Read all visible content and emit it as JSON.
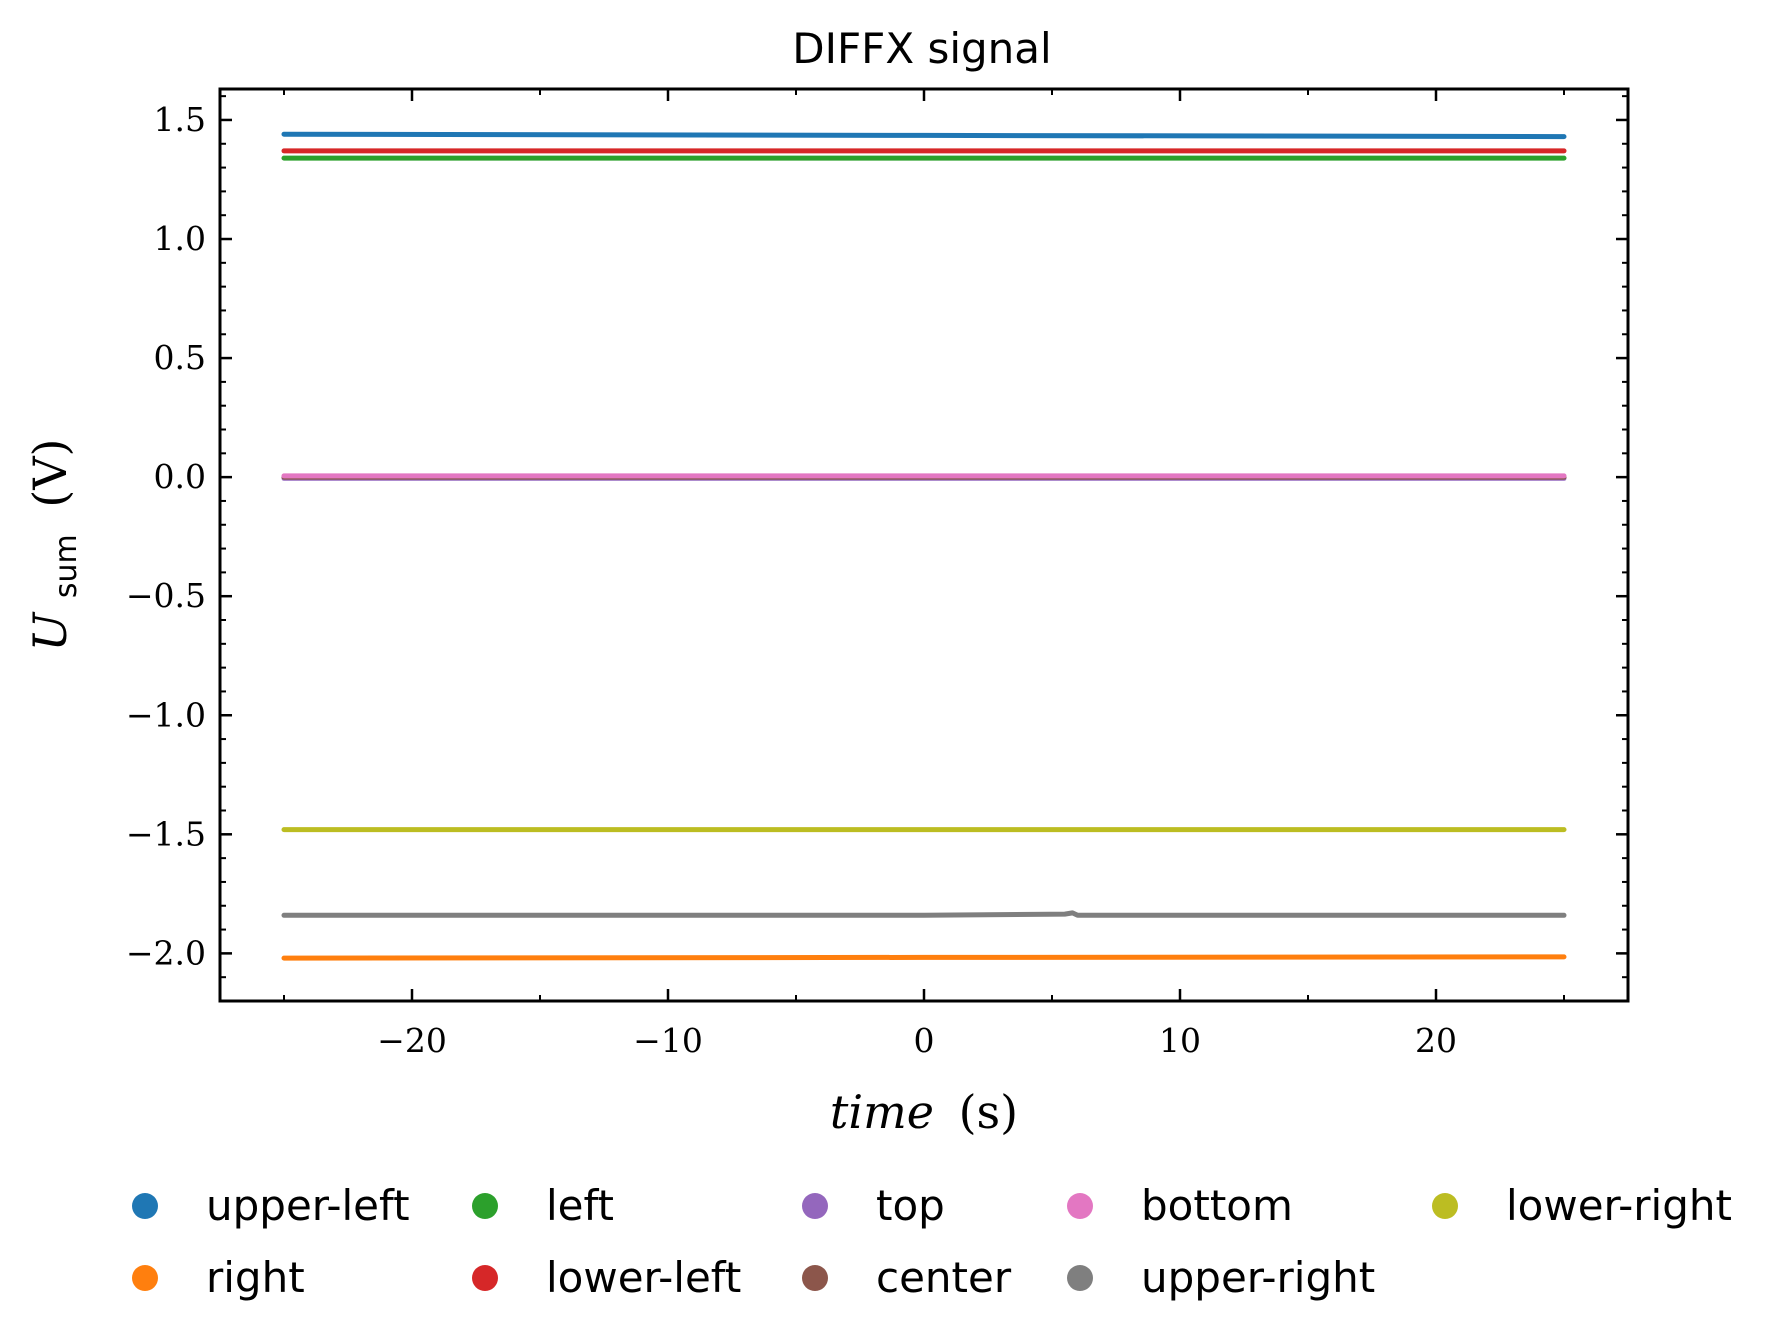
{
  "chart_data": {
    "type": "line",
    "title": "DIFFX signal",
    "xlabel": {
      "var": "time",
      "unit": "(s)"
    },
    "ylabel": {
      "var": "U",
      "sub": "sum",
      "unit": "(V)"
    },
    "xlim": [
      -27.5,
      27.5
    ],
    "ylim": [
      -2.2,
      1.63
    ],
    "x_ticks": [
      {
        "value": -20,
        "label": "−20"
      },
      {
        "value": -10,
        "label": "−10"
      },
      {
        "value": 0,
        "label": "0"
      },
      {
        "value": 10,
        "label": "10"
      },
      {
        "value": 20,
        "label": "20"
      }
    ],
    "y_ticks": [
      {
        "value": 1.5,
        "label": "1.5"
      },
      {
        "value": 1.0,
        "label": "1.0"
      },
      {
        "value": 0.5,
        "label": "0.5"
      },
      {
        "value": 0.0,
        "label": "0.0"
      },
      {
        "value": -0.5,
        "label": "−0.5"
      },
      {
        "value": -1.0,
        "label": "−1.0"
      },
      {
        "value": -1.5,
        "label": "−1.5"
      },
      {
        "value": -2.0,
        "label": "−2.0"
      }
    ],
    "grid": false,
    "legend_position": "bottom",
    "series": [
      {
        "name": "upper-left",
        "color": "#1f77b4",
        "x": [
          -25,
          0,
          25
        ],
        "y": [
          1.44,
          1.435,
          1.43
        ]
      },
      {
        "name": "right",
        "color": "#ff7f0e",
        "x": [
          -25,
          0,
          25
        ],
        "y": [
          -2.02,
          -2.017,
          -2.015
        ]
      },
      {
        "name": "left",
        "color": "#2ca02c",
        "x": [
          -25,
          0,
          25
        ],
        "y": [
          1.34,
          1.34,
          1.34
        ]
      },
      {
        "name": "lower-left",
        "color": "#d62728",
        "x": [
          -25,
          0,
          25
        ],
        "y": [
          1.37,
          1.37,
          1.37
        ]
      },
      {
        "name": "top",
        "color": "#9467bd",
        "x": [
          -25,
          0,
          25
        ],
        "y": [
          -0.005,
          -0.005,
          -0.005
        ]
      },
      {
        "name": "center",
        "color": "#8c564b",
        "x": [
          -25,
          0,
          25
        ],
        "y": [
          0.0,
          0.0,
          0.0
        ]
      },
      {
        "name": "bottom",
        "color": "#e377c2",
        "x": [
          -25,
          0,
          25
        ],
        "y": [
          0.005,
          0.005,
          0.005
        ]
      },
      {
        "name": "upper-right",
        "color": "#7f7f7f",
        "x": [
          -25,
          0,
          5.5,
          5.8,
          6.0,
          25
        ],
        "y": [
          -1.84,
          -1.84,
          -1.835,
          -1.83,
          -1.84,
          -1.84
        ]
      },
      {
        "name": "lower-right",
        "color": "#bcbd22",
        "x": [
          -25,
          0,
          25
        ],
        "y": [
          -1.48,
          -1.48,
          -1.48
        ]
      }
    ]
  }
}
